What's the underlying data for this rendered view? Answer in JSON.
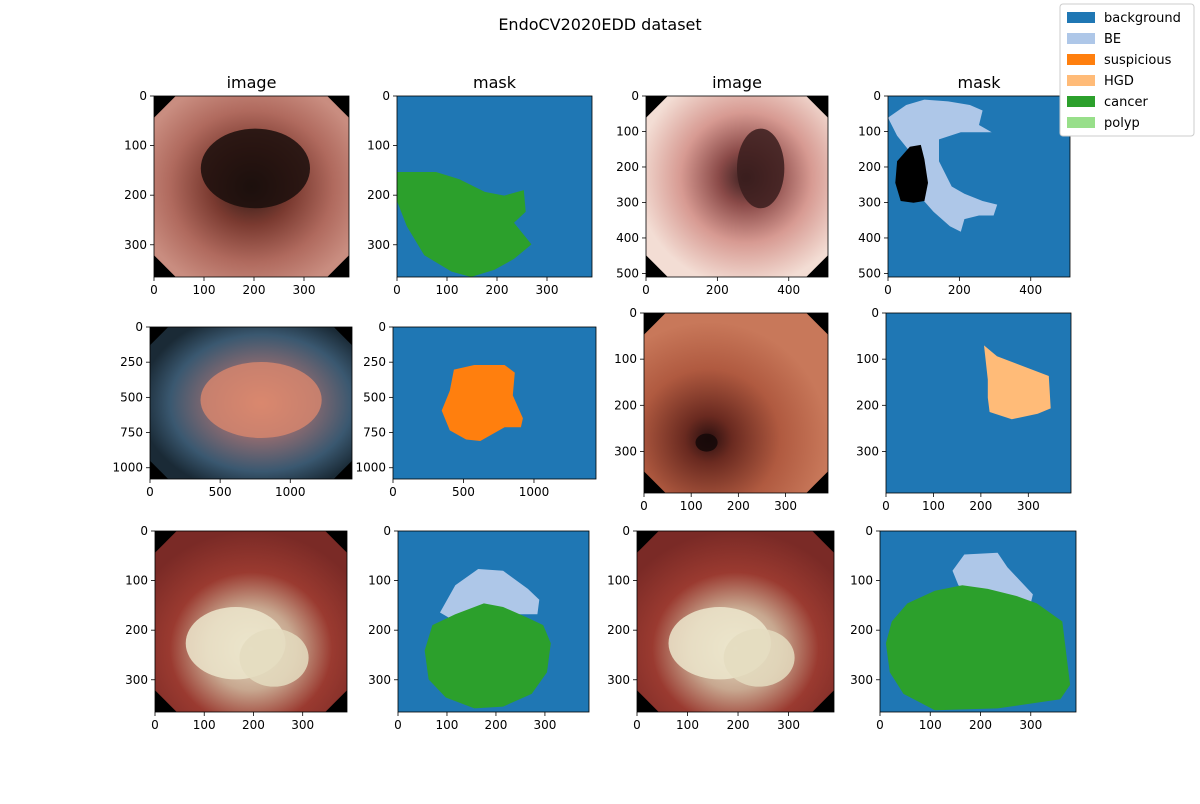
{
  "figure": {
    "title": "EndoCV2020EDD dataset"
  },
  "legend": {
    "placement": "upper right",
    "items": [
      {
        "label": "background",
        "color": "#1f77b4"
      },
      {
        "label": "BE",
        "color": "#aec7e8"
      },
      {
        "label": "suspicious",
        "color": "#ff7f0e"
      },
      {
        "label": "HGD",
        "color": "#ffbb78"
      },
      {
        "label": "cancer",
        "color": "#2ca02c"
      },
      {
        "label": "polyp",
        "color": "#98df8a"
      }
    ]
  },
  "chart_data": [
    {
      "type": "heatmap",
      "title": "image",
      "content": "endoscopic photo",
      "xlim": [
        0,
        390
      ],
      "ylim": [
        0,
        365
      ],
      "xticks": [
        0,
        100,
        200,
        300
      ],
      "yticks": [
        0,
        100,
        200,
        300
      ]
    },
    {
      "type": "heatmap",
      "title": "mask",
      "content": "segmentation mask",
      "xlim": [
        0,
        390
      ],
      "ylim": [
        0,
        365
      ],
      "xticks": [
        0,
        100,
        200,
        300
      ],
      "yticks": [
        0,
        100,
        200,
        300
      ],
      "regions": [
        "background",
        "cancer"
      ]
    },
    {
      "type": "heatmap",
      "title": "image",
      "content": "endoscopic photo",
      "xlim": [
        0,
        510
      ],
      "ylim": [
        0,
        510
      ],
      "xticks": [
        0,
        200,
        400
      ],
      "yticks": [
        0,
        100,
        200,
        300,
        400,
        500
      ]
    },
    {
      "type": "heatmap",
      "title": "mask",
      "content": "segmentation mask",
      "xlim": [
        0,
        510
      ],
      "ylim": [
        0,
        510
      ],
      "xticks": [
        0,
        200,
        400
      ],
      "yticks": [
        0,
        100,
        200,
        300,
        400,
        500
      ],
      "regions": [
        "background",
        "BE"
      ]
    },
    {
      "type": "heatmap",
      "title": "",
      "content": "endoscopic photo",
      "xlim": [
        0,
        1440
      ],
      "ylim": [
        0,
        1080
      ],
      "xticks": [
        0,
        500,
        1000
      ],
      "yticks": [
        0,
        250,
        500,
        750,
        1000
      ]
    },
    {
      "type": "heatmap",
      "title": "",
      "content": "segmentation mask",
      "xlim": [
        0,
        1440
      ],
      "ylim": [
        0,
        1080
      ],
      "xticks": [
        0,
        500,
        1000
      ],
      "yticks": [
        0,
        250,
        500,
        750,
        1000
      ],
      "regions": [
        "background",
        "suspicious"
      ]
    },
    {
      "type": "heatmap",
      "title": "",
      "content": "endoscopic photo",
      "xlim": [
        0,
        390
      ],
      "ylim": [
        0,
        390
      ],
      "xticks": [
        0,
        100,
        200,
        300
      ],
      "yticks": [
        0,
        100,
        200,
        300
      ]
    },
    {
      "type": "heatmap",
      "title": "",
      "content": "segmentation mask",
      "xlim": [
        0,
        390
      ],
      "ylim": [
        0,
        390
      ],
      "xticks": [
        0,
        100,
        200,
        300
      ],
      "yticks": [
        0,
        100,
        200,
        300
      ],
      "regions": [
        "background",
        "HGD"
      ]
    },
    {
      "type": "heatmap",
      "title": "",
      "content": "endoscopic photo",
      "xlim": [
        0,
        390
      ],
      "ylim": [
        0,
        365
      ],
      "xticks": [
        0,
        100,
        200,
        300
      ],
      "yticks": [
        0,
        100,
        200,
        300
      ]
    },
    {
      "type": "heatmap",
      "title": "",
      "content": "segmentation mask",
      "xlim": [
        0,
        390
      ],
      "ylim": [
        0,
        365
      ],
      "xticks": [
        0,
        100,
        200,
        300
      ],
      "yticks": [
        0,
        100,
        200,
        300
      ],
      "regions": [
        "background",
        "BE",
        "cancer"
      ]
    },
    {
      "type": "heatmap",
      "title": "",
      "content": "endoscopic photo",
      "xlim": [
        0,
        390
      ],
      "ylim": [
        0,
        365
      ],
      "xticks": [
        0,
        100,
        200,
        300
      ],
      "yticks": [
        0,
        100,
        200,
        300
      ]
    },
    {
      "type": "heatmap",
      "title": "",
      "content": "segmentation mask",
      "xlim": [
        0,
        390
      ],
      "ylim": [
        0,
        365
      ],
      "xticks": [
        0,
        100,
        200,
        300
      ],
      "yticks": [
        0,
        100,
        200,
        300
      ],
      "regions": [
        "background",
        "BE",
        "cancer"
      ]
    }
  ]
}
